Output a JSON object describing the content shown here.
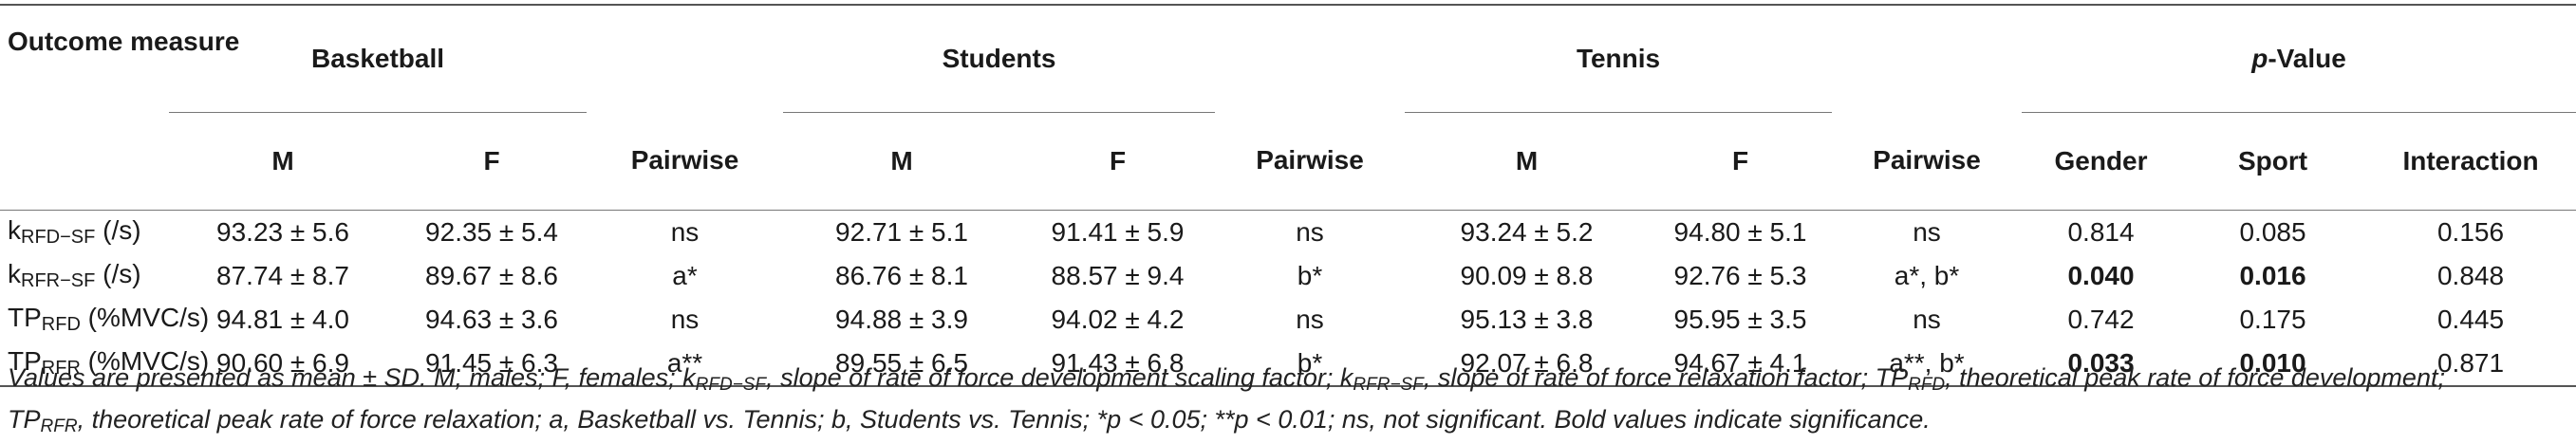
{
  "header": {
    "outcome_label": "Outcome measure",
    "groups": [
      "Basketball",
      "Students",
      "Tennis"
    ],
    "pvalue_label_italic": "p",
    "pvalue_label_rest": "-Value",
    "sub_m": "M",
    "sub_f": "F",
    "sub_pairwise": "Pairwise",
    "sub_gender": "Gender",
    "sub_sport": "Sport",
    "sub_interaction": "Interaction"
  },
  "rows": [
    {
      "label_main": "k",
      "label_sub": "RFD−SF",
      "label_unit": " (/s)",
      "basketball_m": "93.23 ± 5.6",
      "basketball_f": "92.35 ± 5.4",
      "basketball_pairwise": "ns",
      "students_m": "92.71 ± 5.1",
      "students_f": "91.41 ± 5.9",
      "students_pairwise": "ns",
      "tennis_m": "93.24 ± 5.2",
      "tennis_f": "94.80 ± 5.1",
      "tennis_pairwise": "ns",
      "gender": "0.814",
      "sport": "0.085",
      "interaction": "0.156"
    },
    {
      "label_main": "k",
      "label_sub": "RFR−SF",
      "label_unit": " (/s)",
      "basketball_m": "87.74 ± 8.7",
      "basketball_f": "89.67 ± 8.6",
      "basketball_pairwise": "a*",
      "students_m": "86.76 ± 8.1",
      "students_f": "88.57 ± 9.4",
      "students_pairwise": "b*",
      "tennis_m": "90.09 ± 8.8",
      "tennis_f": "92.76 ± 5.3",
      "tennis_pairwise": "a*, b*",
      "gender": "0.040",
      "sport": "0.016",
      "interaction": "0.848"
    },
    {
      "label_main": "TP",
      "label_sub": "RFD",
      "label_unit": " (%MVC/s)",
      "basketball_m": "94.81 ± 4.0",
      "basketball_f": "94.63 ± 3.6",
      "basketball_pairwise": "ns",
      "students_m": "94.88 ± 3.9",
      "students_f": "94.02 ± 4.2",
      "students_pairwise": "ns",
      "tennis_m": "95.13 ± 3.8",
      "tennis_f": "95.95 ± 3.5",
      "tennis_pairwise": "ns",
      "gender": "0.742",
      "sport": "0.175",
      "interaction": "0.445"
    },
    {
      "label_main": "TP",
      "label_sub": "RFR",
      "label_unit": " (%MVC/s)",
      "basketball_m": "90.60 ± 6.9",
      "basketball_f": "91.45 ± 6.3",
      "basketball_pairwise": "a**",
      "students_m": "89.55 ± 6.5",
      "students_f": "91.43 ± 6.8",
      "students_pairwise": "b*",
      "tennis_m": "92.07 ± 6.8",
      "tennis_f": "94.67 ± 4.1",
      "tennis_pairwise": "a**, b*",
      "gender": "0.033",
      "sport": "0.010",
      "interaction": "0.871"
    }
  ],
  "note": {
    "p1": "Values are presented as mean ± SD. M, males; F, females; k",
    "s1": "RFD−SF",
    "p2": ", slope of rate of force development scaling factor; k",
    "s2": "RFR−SF",
    "p3": ", slope of rate of force relaxation factor; TP",
    "s3": "RFD",
    "p4": ", theoretical peak rate of force development;",
    "p5": "TP",
    "s4": "RFR",
    "p6": ", theoretical peak rate of force relaxation; a, Basketball vs. Tennis; b, Students vs. Tennis; *p < 0.05; **p < 0.01; ns, not significant. Bold values indicate significance."
  }
}
